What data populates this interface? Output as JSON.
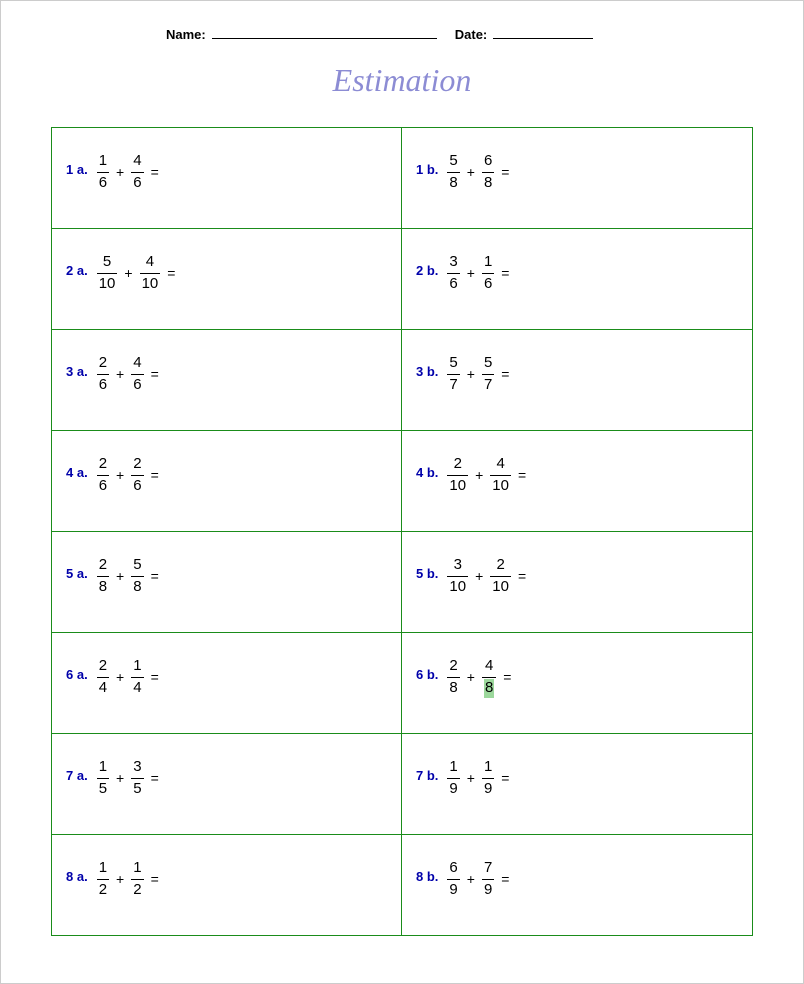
{
  "header": {
    "name_label": "Name:",
    "date_label": "Date:"
  },
  "title": "Estimation",
  "colors": {
    "border": "#1a8c1a",
    "label": "#0000aa",
    "title": "#8c8cd4",
    "highlight_bg": "#9cd89c"
  },
  "problems": [
    {
      "a": {
        "label": "1 a.",
        "n1": "1",
        "d1": "6",
        "n2": "4",
        "d2": "6"
      },
      "b": {
        "label": "1 b.",
        "n1": "5",
        "d1": "8",
        "n2": "6",
        "d2": "8"
      }
    },
    {
      "a": {
        "label": "2 a.",
        "n1": "5",
        "d1": "10",
        "n2": "4",
        "d2": "10"
      },
      "b": {
        "label": "2 b.",
        "n1": "3",
        "d1": "6",
        "n2": "1",
        "d2": "6"
      }
    },
    {
      "a": {
        "label": "3 a.",
        "n1": "2",
        "d1": "6",
        "n2": "4",
        "d2": "6"
      },
      "b": {
        "label": "3 b.",
        "n1": "5",
        "d1": "7",
        "n2": "5",
        "d2": "7"
      }
    },
    {
      "a": {
        "label": "4 a.",
        "n1": "2",
        "d1": "6",
        "n2": "2",
        "d2": "6"
      },
      "b": {
        "label": "4 b.",
        "n1": "2",
        "d1": "10",
        "n2": "4",
        "d2": "10"
      }
    },
    {
      "a": {
        "label": "5 a.",
        "n1": "2",
        "d1": "8",
        "n2": "5",
        "d2": "8"
      },
      "b": {
        "label": "5 b.",
        "n1": "3",
        "d1": "10",
        "n2": "2",
        "d2": "10"
      }
    },
    {
      "a": {
        "label": "6 a.",
        "n1": "2",
        "d1": "4",
        "n2": "1",
        "d2": "4"
      },
      "b": {
        "label": "6 b.",
        "n1": "2",
        "d1": "8",
        "n2": "4",
        "d2": "8",
        "highlight_d2": true
      }
    },
    {
      "a": {
        "label": "7 a.",
        "n1": "1",
        "d1": "5",
        "n2": "3",
        "d2": "5"
      },
      "b": {
        "label": "7 b.",
        "n1": "1",
        "d1": "9",
        "n2": "1",
        "d2": "9"
      }
    },
    {
      "a": {
        "label": "8 a.",
        "n1": "1",
        "d1": "2",
        "n2": "1",
        "d2": "2"
      },
      "b": {
        "label": "8 b.",
        "n1": "6",
        "d1": "9",
        "n2": "7",
        "d2": "9"
      }
    }
  ],
  "operator": "+",
  "equals": "="
}
